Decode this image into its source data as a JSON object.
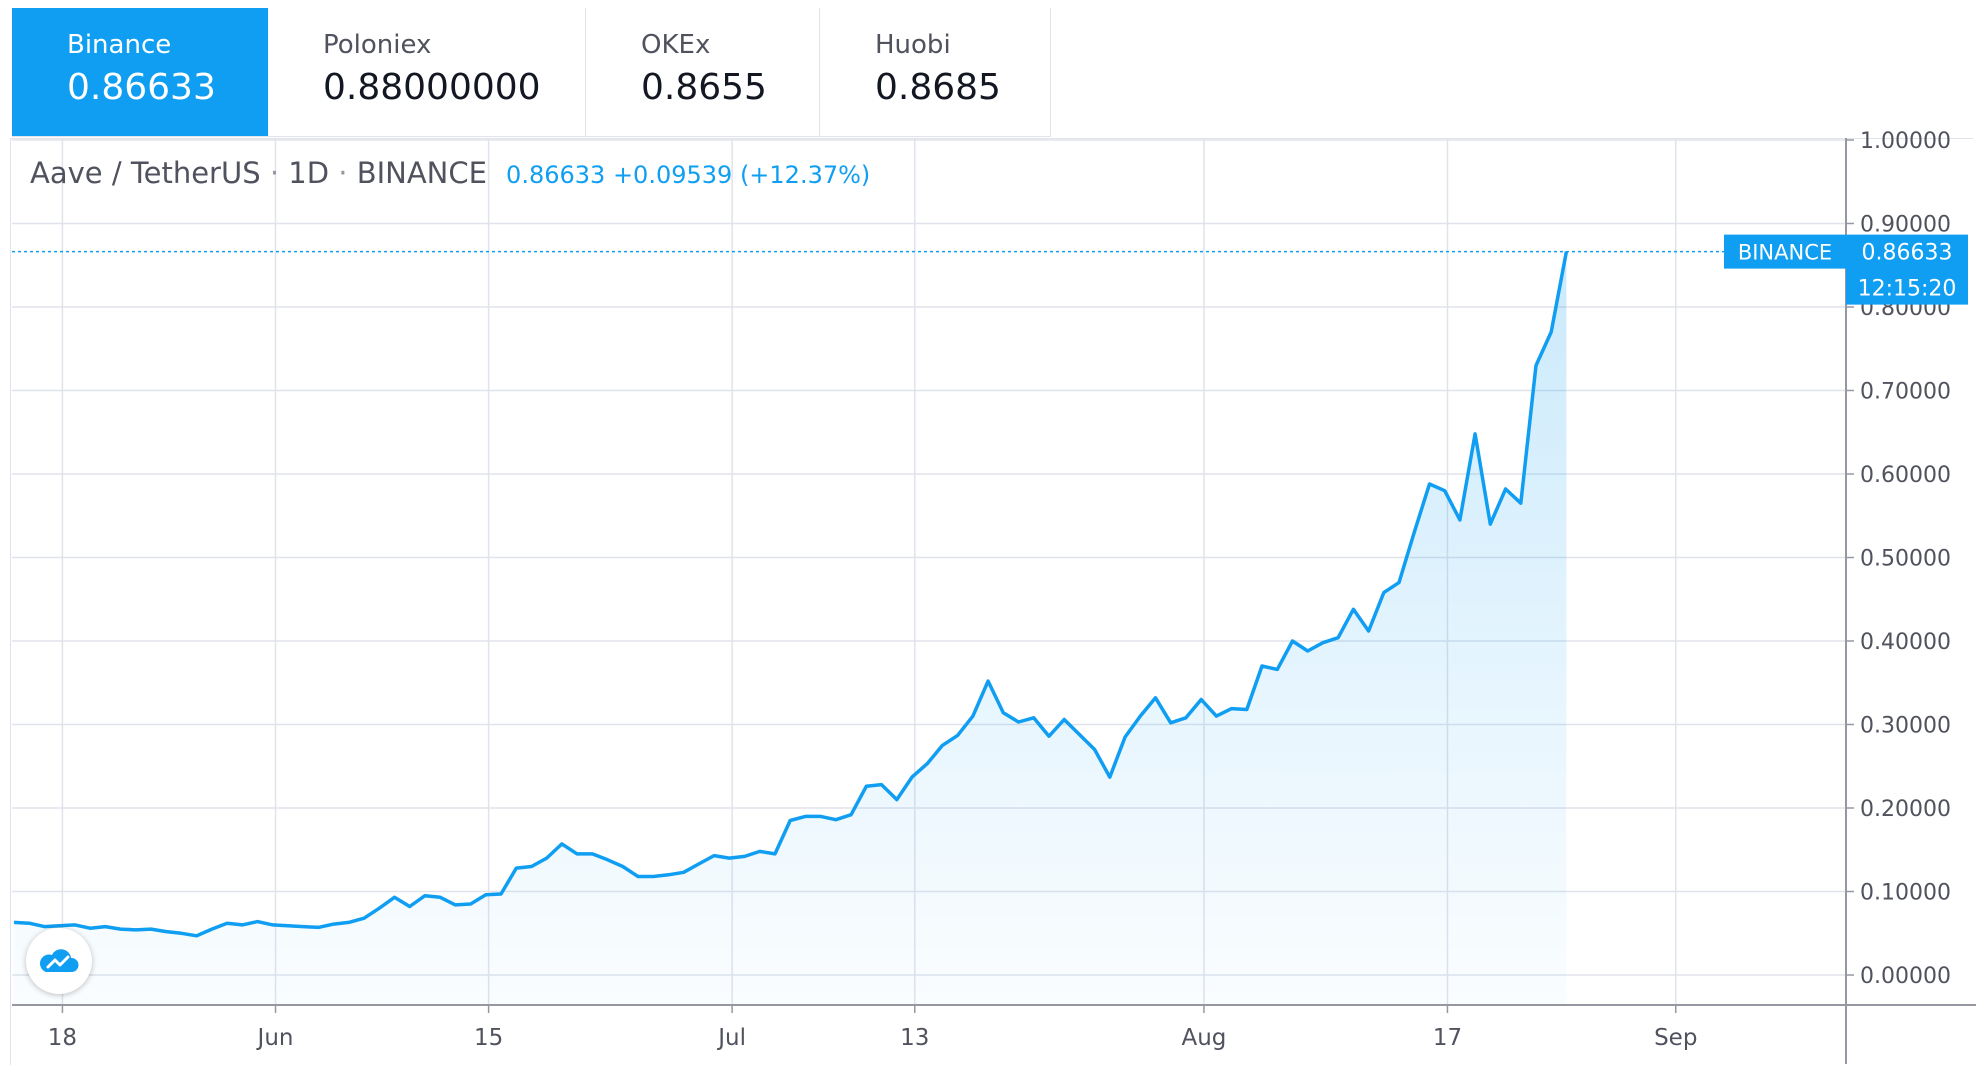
{
  "tabs": [
    {
      "name": "Binance",
      "price": "0.86633",
      "active": true
    },
    {
      "name": "Poloniex",
      "price": "0.88000000",
      "active": false
    },
    {
      "name": "OKEx",
      "price": "0.8655",
      "active": false
    },
    {
      "name": "Huobi",
      "price": "0.8685",
      "active": false
    }
  ],
  "legend": {
    "symbol": "Aave / TetherUS",
    "interval": "1D",
    "exchange": "BINANCE",
    "last": "0.86633",
    "change": "+0.09539",
    "change_pct": "(+12.37%)"
  },
  "price_badge": {
    "exchange": "BINANCE",
    "price": "0.86633",
    "countdown": "12:15:20"
  },
  "colors": {
    "accent": "#0f9ef1",
    "grid": "#e0e3eb",
    "text": "#131722",
    "axis_text": "#50535e"
  },
  "chart_data": {
    "type": "area",
    "ylim": [
      -0.02,
      1.0
    ],
    "x_ticks": [
      "18",
      "Jun",
      "15",
      "Jul",
      "13",
      "Aug",
      "17",
      "Sep"
    ],
    "x_tick_index": [
      2,
      16,
      30,
      46,
      58,
      77,
      93,
      108
    ],
    "y_ticks": [
      "0.00000",
      "0.10000",
      "0.20000",
      "0.30000",
      "0.40000",
      "0.50000",
      "0.60000",
      "0.70000",
      "0.80000",
      "0.90000",
      "1.00000"
    ],
    "grid": true,
    "series": [
      {
        "values": [
          0.063,
          0.062,
          0.058,
          0.059,
          0.06,
          0.056,
          0.058,
          0.055,
          0.054,
          0.055,
          0.052,
          0.05,
          0.047,
          0.055,
          0.062,
          0.06,
          0.064,
          0.06,
          0.059,
          0.058,
          0.057,
          0.061,
          0.063,
          0.068,
          0.08,
          0.093,
          0.082,
          0.095,
          0.093,
          0.084,
          0.085,
          0.096,
          0.097,
          0.128,
          0.13,
          0.14,
          0.157,
          0.145,
          0.145,
          0.138,
          0.13,
          0.118,
          0.118,
          0.12,
          0.123,
          0.133,
          0.143,
          0.14,
          0.142,
          0.148,
          0.145,
          0.185,
          0.19,
          0.19,
          0.186,
          0.192,
          0.226,
          0.228,
          0.21,
          0.237,
          0.253,
          0.275,
          0.287,
          0.31,
          0.352,
          0.314,
          0.303,
          0.308,
          0.286,
          0.306,
          0.288,
          0.27,
          0.237,
          0.285,
          0.31,
          0.332,
          0.302,
          0.308,
          0.33,
          0.31,
          0.319,
          0.318,
          0.37,
          0.366,
          0.4,
          0.388,
          0.398,
          0.404,
          0.438,
          0.412,
          0.458,
          0.47,
          0.53,
          0.588,
          0.58,
          0.545,
          0.648,
          0.54,
          0.582,
          0.565,
          0.73,
          0.77,
          0.86633
        ]
      }
    ]
  },
  "logo": "tradingview-cloud-logo"
}
